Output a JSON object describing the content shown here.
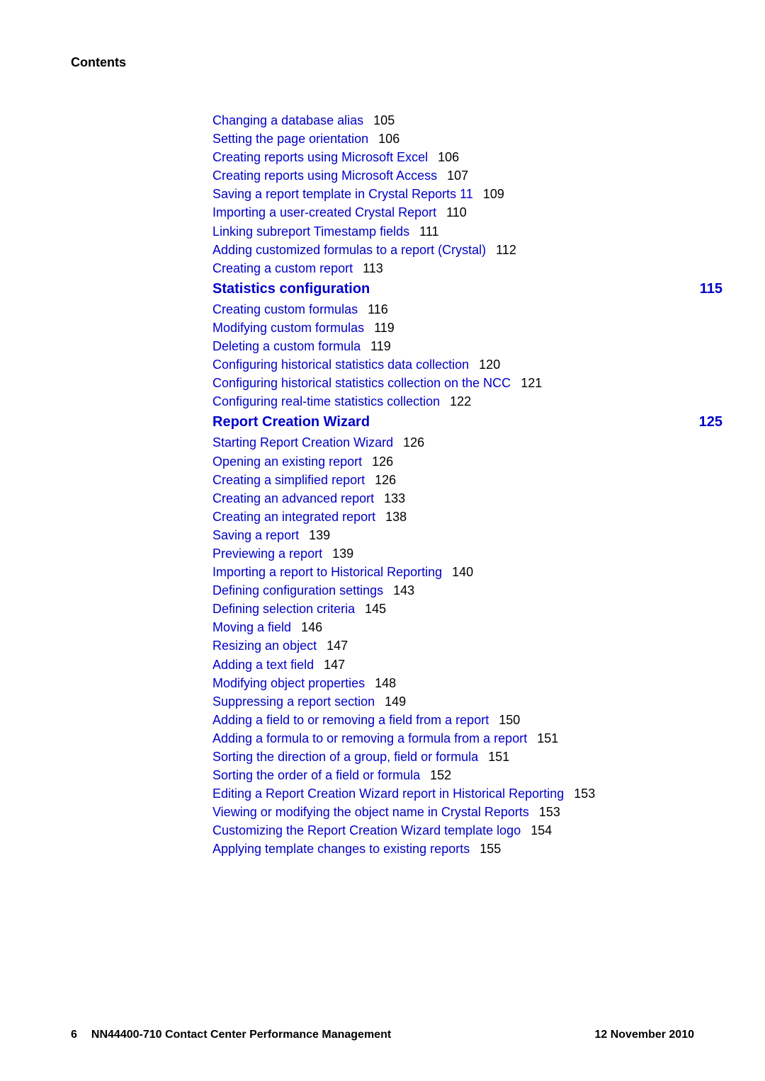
{
  "header": {
    "contents_label": "Contents"
  },
  "toc": {
    "block1": [
      {
        "text": "Changing a database alias",
        "page": "105"
      },
      {
        "text": "Setting the page orientation",
        "page": "106"
      },
      {
        "text": "Creating reports using Microsoft Excel",
        "page": "106"
      },
      {
        "text": "Creating reports using Microsoft Access",
        "page": "107"
      },
      {
        "text": "Saving a report template in Crystal Reports 11",
        "page": "109"
      },
      {
        "text": "Importing a user-created Crystal Report",
        "page": "110"
      },
      {
        "text": "Linking subreport Timestamp fields",
        "page": "111"
      },
      {
        "text": "Adding customized formulas to a report (Crystal)",
        "page": "112"
      },
      {
        "text": "Creating a custom report",
        "page": "113"
      }
    ],
    "section1": {
      "title": "Statistics configuration",
      "page": "115"
    },
    "block2": [
      {
        "text": "Creating custom formulas",
        "page": "116"
      },
      {
        "text": "Modifying custom formulas",
        "page": "119"
      },
      {
        "text": "Deleting a custom formula",
        "page": "119"
      },
      {
        "text": "Configuring historical statistics data collection",
        "page": "120"
      },
      {
        "text": "Configuring historical statistics collection on the NCC",
        "page": "121"
      },
      {
        "text": "Configuring real-time statistics collection",
        "page": "122"
      }
    ],
    "section2": {
      "title": "Report Creation Wizard",
      "page": "125"
    },
    "block3": [
      {
        "text": "Starting Report Creation Wizard",
        "page": "126"
      },
      {
        "text": "Opening an existing report",
        "page": "126"
      },
      {
        "text": "Creating a simplified report",
        "page": "126"
      },
      {
        "text": "Creating an advanced report",
        "page": "133"
      },
      {
        "text": "Creating an integrated report",
        "page": "138"
      },
      {
        "text": "Saving a report",
        "page": "139"
      },
      {
        "text": "Previewing a report",
        "page": "139"
      },
      {
        "text": "Importing a report to Historical Reporting",
        "page": "140"
      },
      {
        "text": "Defining configuration settings",
        "page": "143"
      },
      {
        "text": "Defining selection criteria",
        "page": "145"
      },
      {
        "text": "Moving a field",
        "page": "146"
      },
      {
        "text": "Resizing an object",
        "page": "147"
      },
      {
        "text": "Adding a text field",
        "page": "147"
      },
      {
        "text": "Modifying object properties",
        "page": "148"
      },
      {
        "text": "Suppressing a report section",
        "page": "149"
      },
      {
        "text": "Adding a field to or removing a field from a report",
        "page": "150"
      },
      {
        "text": "Adding a formula to or removing a formula from a report",
        "page": "151"
      },
      {
        "text": "Sorting the direction of a group, field or formula",
        "page": "151"
      },
      {
        "text": "Sorting the order of a field or formula",
        "page": "152"
      },
      {
        "text": "Editing a Report Creation Wizard report in Historical Reporting",
        "page": "153"
      },
      {
        "text": "Viewing or modifying the object name in Crystal Reports",
        "page": "153"
      },
      {
        "text": "Customizing the Report Creation Wizard template logo",
        "page": "154"
      },
      {
        "text": "Applying template changes to existing reports",
        "page": "155"
      }
    ]
  },
  "footer": {
    "page_number": "6",
    "doc_title": "NN44400-710 Contact Center Performance Management",
    "date": "12 November 2010"
  }
}
